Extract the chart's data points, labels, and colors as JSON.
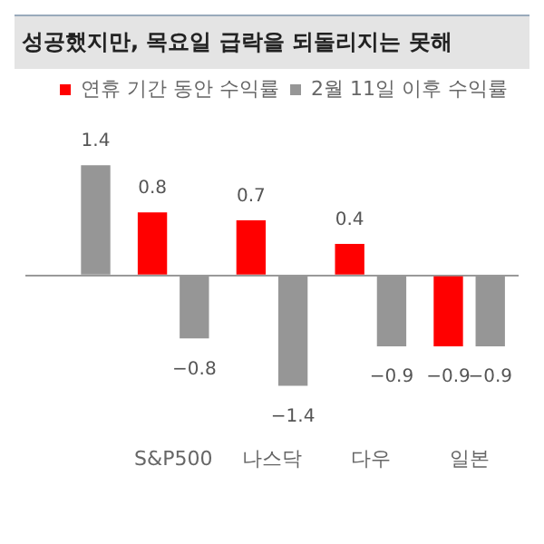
{
  "chart_data": {
    "type": "bar",
    "title": "성공했지만, 목요일 급락을 되돌리지는 못해",
    "categories": [
      null,
      "S&P500",
      "나스닥",
      "다우",
      "일본"
    ],
    "series": [
      {
        "name": "연휴 기간 동안 수익률",
        "color": "#ff0000",
        "values": [
          null,
          0.8,
          0.7,
          0.4,
          -0.9
        ]
      },
      {
        "name": "2월 11일 이후 수익률",
        "color": "#969696",
        "values": [
          1.4,
          -0.8,
          -1.4,
          -0.9,
          -0.9
        ]
      }
    ],
    "tick_labels": "x",
    "data_labels": true,
    "legend": "top right",
    "grid": false
  }
}
